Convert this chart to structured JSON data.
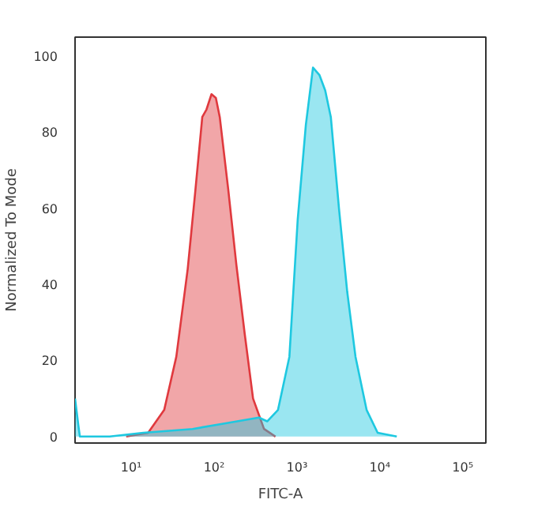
{
  "chart_data": {
    "type": "area",
    "xlabel": "FITC-A",
    "ylabel": "Normalized To Mode",
    "log": "x",
    "xlim": [
      2.1,
      190000
    ],
    "ylim": [
      -1.7,
      105
    ],
    "xticks": [
      {
        "value": 10,
        "label": "10¹"
      },
      {
        "value": 100,
        "label": "10²"
      },
      {
        "value": 1000,
        "label": "10³"
      },
      {
        "value": 10000,
        "label": "10⁴"
      },
      {
        "value": 100000,
        "label": "10⁵"
      }
    ],
    "yticks": [
      0,
      20,
      40,
      60,
      80,
      100
    ],
    "grid": false,
    "series": [
      {
        "color": "#e0393e",
        "x": [
          8.7,
          16,
          25,
          35,
          48,
          59,
          72,
          81,
          93,
          105,
          117,
          148,
          186,
          234,
          295,
          400,
          550
        ],
        "values": [
          0,
          1,
          7,
          21,
          44,
          64,
          84,
          86,
          90,
          89,
          84,
          65,
          45,
          27,
          10,
          2,
          0
        ]
      },
      {
        "color": "#1ec8e0",
        "x": [
          2.1,
          2.3,
          2.4,
          5.5,
          14,
          55,
          138,
          347,
          437,
          590,
          810,
          1020,
          1280,
          1560,
          1870,
          2190,
          2560,
          3210,
          4040,
          5080,
          6920,
          9400,
          16000
        ],
        "values": [
          10,
          3,
          0,
          0,
          1,
          2,
          3.5,
          5,
          4,
          7,
          21,
          57,
          82,
          97,
          95,
          91,
          84,
          60,
          38,
          21,
          7,
          1,
          0
        ]
      }
    ]
  }
}
